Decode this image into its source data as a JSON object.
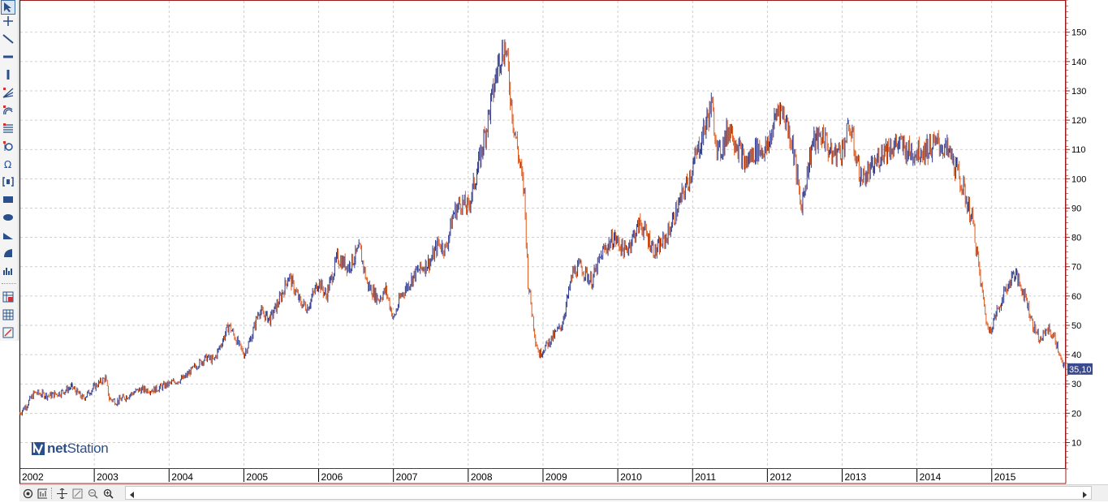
{
  "branding": {
    "name": "netStation"
  },
  "toolbar": {
    "tools": [
      {
        "name": "pointer-icon"
      },
      {
        "name": "crosshair-icon"
      },
      {
        "name": "trendline-icon"
      },
      {
        "name": "horizontal-line-icon"
      },
      {
        "name": "vertical-line-icon"
      },
      {
        "name": "fibonacci-fan-icon"
      },
      {
        "name": "fibonacci-arcs-icon"
      },
      {
        "name": "fibonacci-retracement-icon"
      },
      {
        "name": "fibonacci-time-icon"
      },
      {
        "name": "omega-icon"
      },
      {
        "name": "bracket-icon"
      },
      {
        "name": "rectangle-icon"
      },
      {
        "name": "ellipse-icon"
      },
      {
        "name": "triangle-icon"
      },
      {
        "name": "arc-icon"
      },
      {
        "name": "bars-icon"
      },
      {
        "name": "grid-chart-icon"
      },
      {
        "name": "grid-table-icon"
      },
      {
        "name": "grid-settings-icon"
      }
    ]
  },
  "bottombar": {
    "buttons": [
      {
        "name": "settings-icon"
      },
      {
        "name": "indicators-icon"
      },
      {
        "name": "pan-icon"
      },
      {
        "name": "zoom-fit-icon"
      },
      {
        "name": "zoom-out-icon"
      },
      {
        "name": "zoom-in-icon"
      }
    ]
  },
  "chart_data": {
    "type": "line",
    "title": "",
    "xlabel": "",
    "ylabel": "",
    "x_ticks": [
      "2002",
      "2003",
      "2004",
      "2005",
      "2006",
      "2007",
      "2008",
      "2009",
      "2010",
      "2011",
      "2012",
      "2013",
      "2014",
      "2015"
    ],
    "y_ticks": [
      10,
      20,
      30,
      40,
      50,
      60,
      70,
      80,
      90,
      100,
      110,
      120,
      130,
      140,
      150
    ],
    "xlim": [
      2002.0,
      2015.99
    ],
    "ylim": [
      1,
      161
    ],
    "grid": true,
    "last_value_label": "35,10",
    "colors": {
      "up": "#2e3a8c",
      "down": "#e05a1e",
      "grid": "#c0c0c0",
      "axis": "#9b1c1c",
      "label_bg": "#3b4a8f"
    },
    "series": [
      {
        "values": [
          [
            2002.0,
            20
          ],
          [
            2002.1,
            23
          ],
          [
            2002.2,
            27
          ],
          [
            2002.4,
            26
          ],
          [
            2002.55,
            27
          ],
          [
            2002.7,
            29
          ],
          [
            2002.85,
            25
          ],
          [
            2003.0,
            29
          ],
          [
            2003.15,
            32
          ],
          [
            2003.2,
            25
          ],
          [
            2003.3,
            24
          ],
          [
            2003.45,
            26
          ],
          [
            2003.6,
            28
          ],
          [
            2003.8,
            28
          ],
          [
            2004.0,
            30
          ],
          [
            2004.2,
            32
          ],
          [
            2004.35,
            36
          ],
          [
            2004.5,
            39
          ],
          [
            2004.6,
            38
          ],
          [
            2004.8,
            50
          ],
          [
            2004.9,
            45
          ],
          [
            2005.0,
            40
          ],
          [
            2005.1,
            46
          ],
          [
            2005.2,
            55
          ],
          [
            2005.35,
            52
          ],
          [
            2005.5,
            60
          ],
          [
            2005.6,
            67
          ],
          [
            2005.75,
            58
          ],
          [
            2005.85,
            56
          ],
          [
            2006.0,
            65
          ],
          [
            2006.1,
            60
          ],
          [
            2006.25,
            73
          ],
          [
            2006.4,
            70
          ],
          [
            2006.55,
            76
          ],
          [
            2006.65,
            64
          ],
          [
            2006.8,
            59
          ],
          [
            2006.9,
            62
          ],
          [
            2007.0,
            52
          ],
          [
            2007.1,
            60
          ],
          [
            2007.3,
            68
          ],
          [
            2007.5,
            72
          ],
          [
            2007.6,
            78
          ],
          [
            2007.7,
            76
          ],
          [
            2007.8,
            88
          ],
          [
            2007.9,
            92
          ],
          [
            2008.0,
            90
          ],
          [
            2008.15,
            106
          ],
          [
            2008.3,
            125
          ],
          [
            2008.42,
            142
          ],
          [
            2008.5,
            145
          ],
          [
            2008.6,
            120
          ],
          [
            2008.75,
            95
          ],
          [
            2008.8,
            65
          ],
          [
            2008.9,
            45
          ],
          [
            2008.95,
            40
          ],
          [
            2009.1,
            45
          ],
          [
            2009.25,
            50
          ],
          [
            2009.4,
            68
          ],
          [
            2009.5,
            70
          ],
          [
            2009.65,
            65
          ],
          [
            2009.8,
            75
          ],
          [
            2009.95,
            80
          ],
          [
            2010.1,
            75
          ],
          [
            2010.3,
            85
          ],
          [
            2010.5,
            75
          ],
          [
            2010.65,
            80
          ],
          [
            2010.8,
            90
          ],
          [
            2010.95,
            100
          ],
          [
            2011.1,
            112
          ],
          [
            2011.25,
            125
          ],
          [
            2011.35,
            108
          ],
          [
            2011.5,
            118
          ],
          [
            2011.7,
            105
          ],
          [
            2011.85,
            110
          ],
          [
            2012.0,
            110
          ],
          [
            2012.15,
            125
          ],
          [
            2012.25,
            120
          ],
          [
            2012.35,
            110
          ],
          [
            2012.45,
            90
          ],
          [
            2012.6,
            112
          ],
          [
            2012.75,
            115
          ],
          [
            2012.85,
            108
          ],
          [
            2013.0,
            110
          ],
          [
            2013.1,
            118
          ],
          [
            2013.25,
            100
          ],
          [
            2013.4,
            103
          ],
          [
            2013.55,
            110
          ],
          [
            2013.75,
            112
          ],
          [
            2013.9,
            109
          ],
          [
            2014.1,
            110
          ],
          [
            2014.3,
            112
          ],
          [
            2014.45,
            108
          ],
          [
            2014.6,
            98
          ],
          [
            2014.75,
            85
          ],
          [
            2014.85,
            65
          ],
          [
            2014.95,
            48
          ],
          [
            2015.0,
            50
          ],
          [
            2015.15,
            60
          ],
          [
            2015.3,
            68
          ],
          [
            2015.45,
            60
          ],
          [
            2015.55,
            50
          ],
          [
            2015.65,
            45
          ],
          [
            2015.75,
            49
          ],
          [
            2015.85,
            45
          ],
          [
            2015.95,
            36
          ],
          [
            2015.99,
            35.1
          ]
        ]
      }
    ]
  }
}
